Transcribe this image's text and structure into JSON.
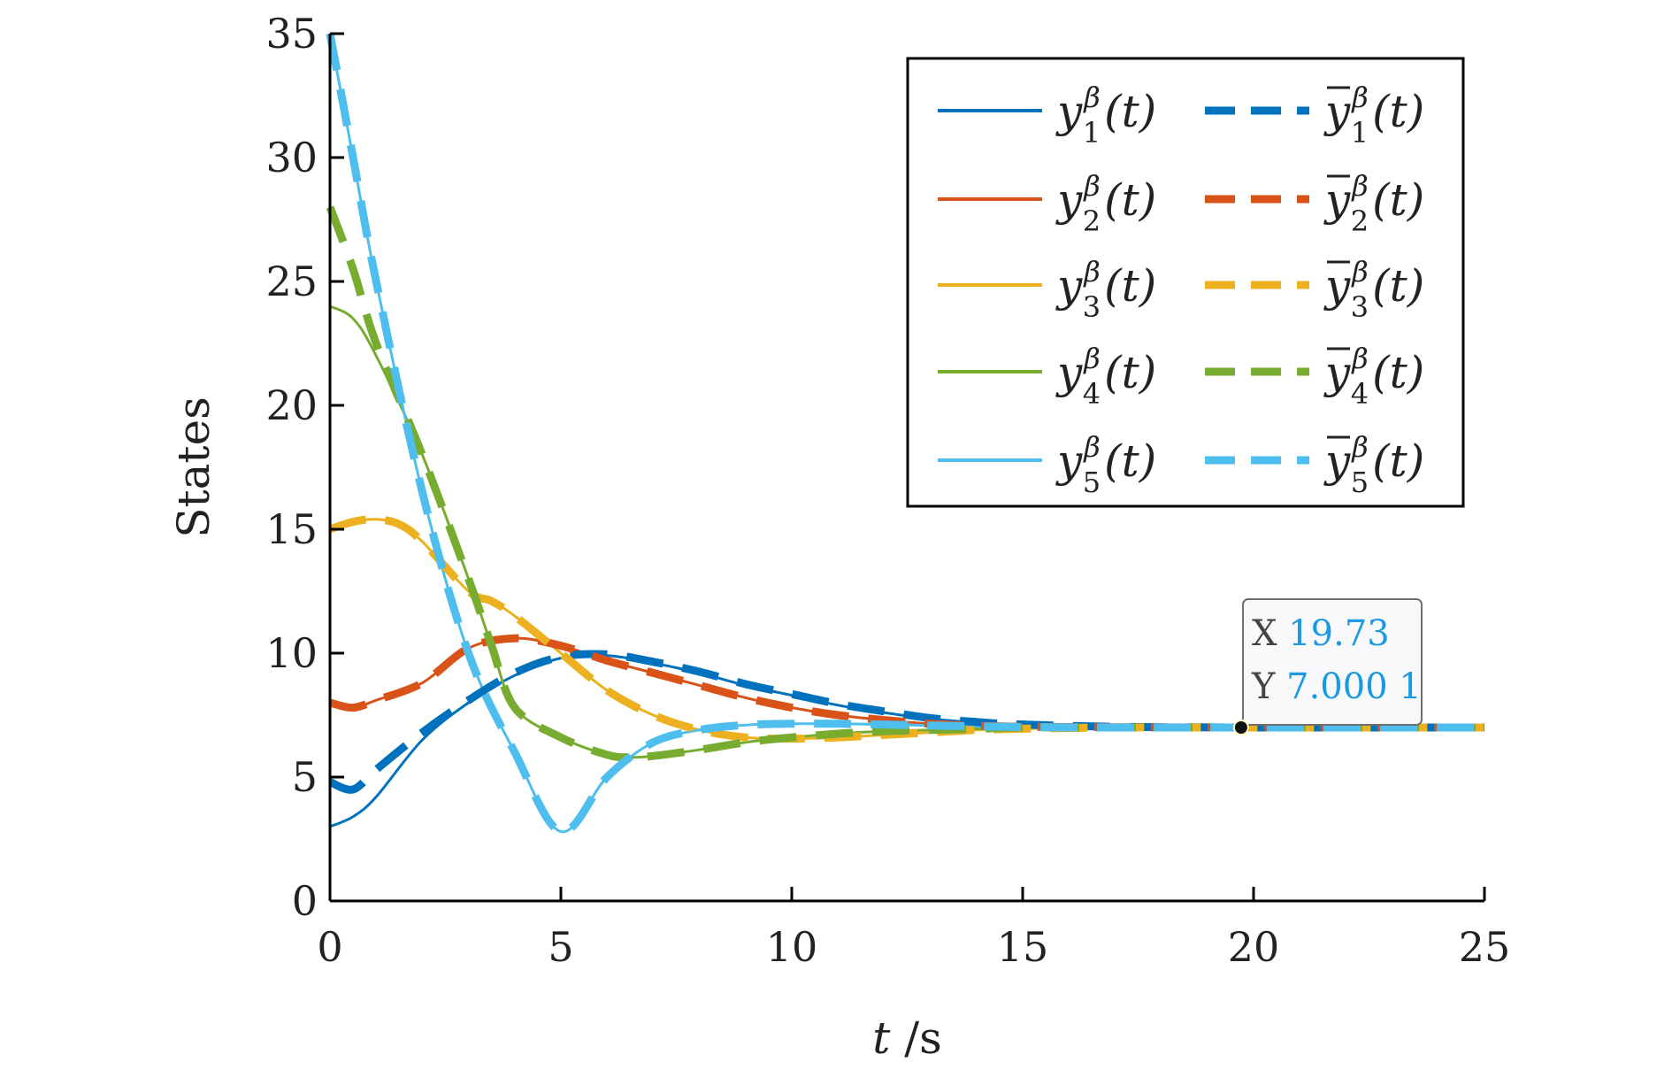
{
  "chart_data": {
    "type": "line",
    "title": "",
    "xlabel": "t /s",
    "ylabel": "States",
    "xlim": [
      0,
      25
    ],
    "ylim": [
      0,
      35
    ],
    "xticks": [
      "0",
      "5",
      "10",
      "15",
      "20",
      "25"
    ],
    "yticks": [
      "0",
      "5",
      "10",
      "15",
      "20",
      "25",
      "30",
      "35"
    ],
    "grid": false,
    "legend_position": "top-right",
    "series": [
      {
        "name": "y1β(t)",
        "color": "#0072bd",
        "style": "solid",
        "x": [
          0,
          0.5,
          1,
          2,
          3,
          4,
          5,
          6,
          7,
          8,
          9,
          10,
          11,
          12,
          13,
          14,
          15,
          17,
          20,
          25
        ],
        "y": [
          3.0,
          3.4,
          4.2,
          6.5,
          8.0,
          9.1,
          9.8,
          9.9,
          9.6,
          9.2,
          8.7,
          8.3,
          7.9,
          7.6,
          7.35,
          7.2,
          7.1,
          7.02,
          7.0,
          7.0
        ]
      },
      {
        "name": "y2β(t)",
        "color": "#d95319",
        "style": "solid",
        "x": [
          0,
          0.5,
          1,
          2,
          3,
          4,
          5,
          6,
          7,
          8,
          9,
          10,
          11,
          12,
          13,
          14,
          15,
          17,
          20,
          25
        ],
        "y": [
          8.0,
          7.8,
          8.1,
          8.8,
          10.2,
          10.6,
          10.3,
          9.7,
          9.2,
          8.7,
          8.2,
          7.8,
          7.5,
          7.3,
          7.15,
          7.07,
          7.03,
          7.01,
          7.0,
          7.0
        ]
      },
      {
        "name": "y3β(t)",
        "color": "#edb120",
        "style": "solid",
        "x": [
          0,
          0.5,
          1,
          1.5,
          2,
          3,
          3.5,
          4,
          5,
          6,
          7,
          8,
          9,
          10,
          11,
          12,
          13,
          14,
          15,
          17,
          20,
          25
        ],
        "y": [
          15.0,
          15.3,
          15.4,
          15.2,
          14.5,
          12.5,
          12.1,
          11.5,
          10.0,
          8.5,
          7.5,
          6.9,
          6.6,
          6.55,
          6.6,
          6.7,
          6.8,
          6.9,
          6.95,
          7.0,
          7.0,
          7.0
        ]
      },
      {
        "name": "y4β(t)",
        "color": "#77ac30",
        "style": "solid",
        "x": [
          0,
          0.5,
          1,
          2,
          3,
          3.5,
          4,
          5,
          6,
          6.5,
          7,
          8,
          9,
          10,
          11,
          12,
          14,
          15,
          17,
          20,
          25
        ],
        "y": [
          24.0,
          23.5,
          22.0,
          18.0,
          13.0,
          10.3,
          7.8,
          6.6,
          5.9,
          5.8,
          5.85,
          6.1,
          6.4,
          6.6,
          6.75,
          6.85,
          6.95,
          7.0,
          7.0,
          7.0,
          7.0
        ]
      },
      {
        "name": "y5β(t)",
        "color": "#4dbeee",
        "style": "solid",
        "x": [
          0,
          0.5,
          1,
          2,
          3,
          4,
          5,
          6,
          7,
          8,
          9,
          10,
          11,
          12,
          13,
          14,
          15,
          17,
          20,
          25
        ],
        "y": [
          35.0,
          30.0,
          25.0,
          16.5,
          10.0,
          6.0,
          2.8,
          5.0,
          6.4,
          6.9,
          7.1,
          7.15,
          7.15,
          7.12,
          7.08,
          7.05,
          7.02,
          7.0,
          7.0,
          7.0
        ]
      },
      {
        "name": "ȳ1β(t)",
        "color": "#0072bd",
        "style": "dashed",
        "x": [
          0,
          0.5,
          1,
          2,
          3,
          4,
          5,
          6,
          7,
          8,
          9,
          10,
          11,
          12,
          13,
          14,
          15,
          17,
          20,
          25
        ],
        "y": [
          4.8,
          4.5,
          5.3,
          6.8,
          8.1,
          9.2,
          9.85,
          9.95,
          9.65,
          9.25,
          8.75,
          8.35,
          7.95,
          7.65,
          7.38,
          7.22,
          7.12,
          7.03,
          7.0,
          7.0
        ]
      },
      {
        "name": "ȳ2β(t)",
        "color": "#d95319",
        "style": "dashed",
        "x": [
          0,
          0.5,
          1,
          2,
          3,
          4,
          5,
          6,
          7,
          8,
          9,
          10,
          11,
          12,
          13,
          14,
          15,
          17,
          20,
          25
        ],
        "y": [
          8.0,
          7.8,
          8.1,
          8.8,
          10.2,
          10.6,
          10.3,
          9.7,
          9.2,
          8.7,
          8.2,
          7.8,
          7.5,
          7.3,
          7.15,
          7.07,
          7.03,
          7.01,
          7.0,
          7.0
        ]
      },
      {
        "name": "ȳ3β(t)",
        "color": "#edb120",
        "style": "dashed",
        "x": [
          0,
          0.5,
          1,
          1.5,
          2,
          3,
          3.5,
          4,
          5,
          6,
          7,
          8,
          9,
          10,
          11,
          12,
          13,
          14,
          15,
          17,
          20,
          25
        ],
        "y": [
          15.0,
          15.3,
          15.4,
          15.2,
          14.5,
          12.5,
          12.1,
          11.5,
          10.0,
          8.5,
          7.5,
          6.9,
          6.6,
          6.55,
          6.6,
          6.7,
          6.8,
          6.9,
          6.95,
          7.0,
          7.0,
          7.0
        ]
      },
      {
        "name": "ȳ4β(t)",
        "color": "#77ac30",
        "style": "dashed",
        "x": [
          0,
          0.5,
          1,
          2,
          3,
          3.5,
          4,
          5,
          6,
          6.5,
          7,
          8,
          9,
          10,
          11,
          12,
          14,
          15,
          17,
          20,
          25
        ],
        "y": [
          28.0,
          25.5,
          22.5,
          18.0,
          13.0,
          10.3,
          7.8,
          6.6,
          5.9,
          5.8,
          5.85,
          6.1,
          6.4,
          6.6,
          6.75,
          6.85,
          6.95,
          7.0,
          7.0,
          7.0,
          7.0
        ]
      },
      {
        "name": "ȳ5β(t)",
        "color": "#4dbeee",
        "style": "dashed",
        "x": [
          0,
          0.5,
          1,
          2,
          3,
          4,
          5,
          6,
          7,
          8,
          9,
          10,
          11,
          12,
          13,
          14,
          15,
          17,
          20,
          25
        ],
        "y": [
          35.0,
          30.0,
          25.0,
          16.5,
          10.0,
          6.0,
          2.8,
          5.0,
          6.4,
          6.9,
          7.1,
          7.15,
          7.15,
          7.12,
          7.08,
          7.05,
          7.02,
          7.0,
          7.0,
          7.0
        ]
      }
    ],
    "legend": {
      "entries": [
        {
          "base": "y",
          "sub": "1",
          "sup": "β",
          "arg": "(t)",
          "bar": false,
          "series": 0
        },
        {
          "base": "y",
          "sub": "2",
          "sup": "β",
          "arg": "(t)",
          "bar": false,
          "series": 1
        },
        {
          "base": "y",
          "sub": "3",
          "sup": "β",
          "arg": "(t)",
          "bar": false,
          "series": 2
        },
        {
          "base": "y",
          "sub": "4",
          "sup": "β",
          "arg": "(t)",
          "bar": false,
          "series": 3
        },
        {
          "base": "y",
          "sub": "5",
          "sup": "β",
          "arg": "(t)",
          "bar": false,
          "series": 4
        },
        {
          "base": "y",
          "sub": "1",
          "sup": "β",
          "arg": "(t)",
          "bar": true,
          "series": 5
        },
        {
          "base": "y",
          "sub": "2",
          "sup": "β",
          "arg": "(t)",
          "bar": true,
          "series": 6
        },
        {
          "base": "y",
          "sub": "3",
          "sup": "β",
          "arg": "(t)",
          "bar": true,
          "series": 7
        },
        {
          "base": "y",
          "sub": "4",
          "sup": "β",
          "arg": "(t)",
          "bar": true,
          "series": 8
        },
        {
          "base": "y",
          "sub": "5",
          "sup": "β",
          "arg": "(t)",
          "bar": true,
          "series": 9
        }
      ]
    },
    "datatip": {
      "x": 19.73,
      "y": 7.0001,
      "x_label": "X",
      "y_label": "Y",
      "x_text": "19.73",
      "y_text": "7.000 1",
      "value_color": "#1a9ae0"
    }
  }
}
